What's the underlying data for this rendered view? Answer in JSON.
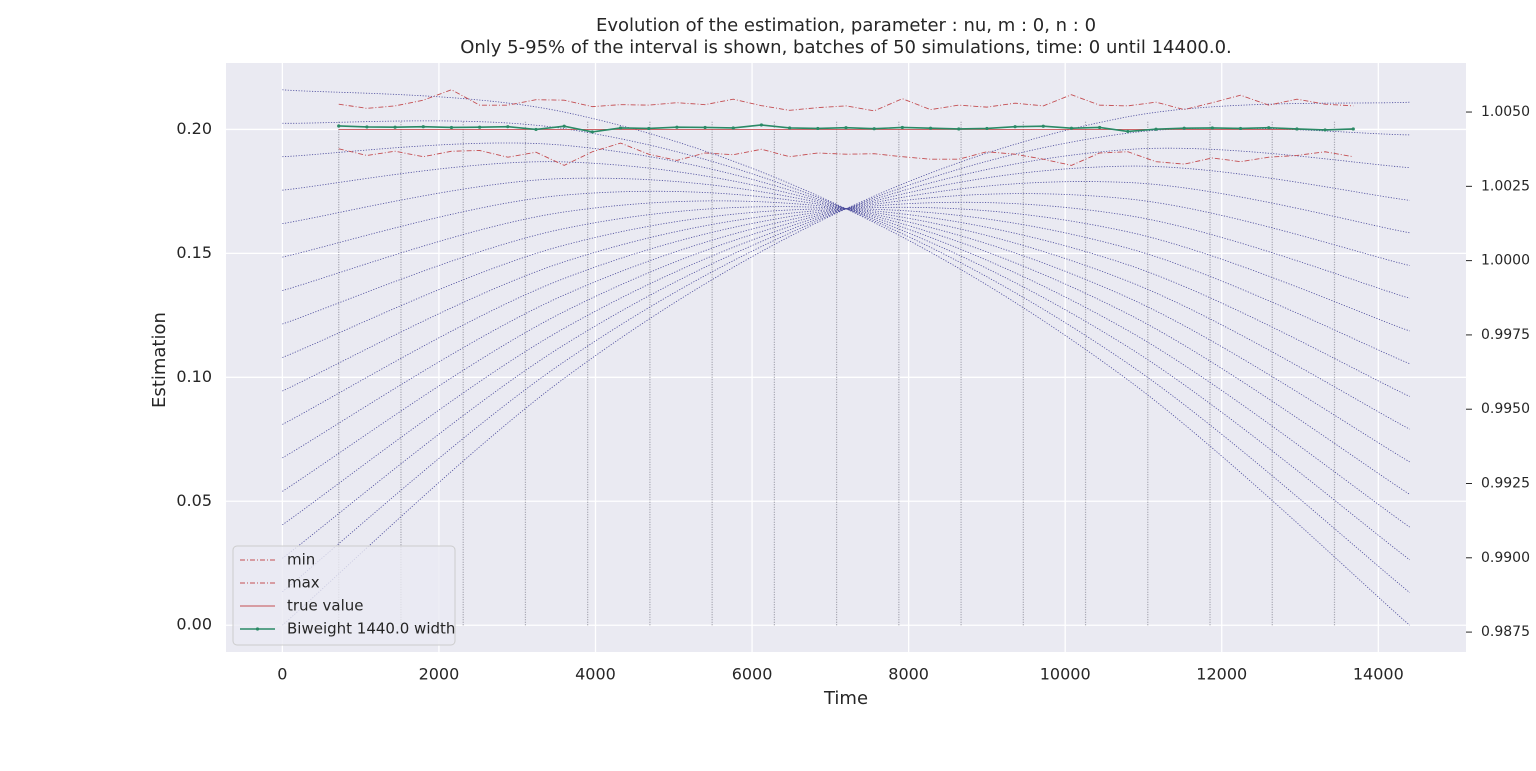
{
  "chart_data": {
    "type": "line",
    "title": "Evolution of the estimation, parameter : nu, m : 0, n : 0",
    "subtitle": "Only 5-95% of the interval is shown, batches of 50 simulations, time: 0 until 14400.0.",
    "x_label": "Time",
    "y_label": "Estimation",
    "xlim": [
      -720,
      15120
    ],
    "xticks": [
      0,
      2000,
      4000,
      6000,
      8000,
      10000,
      12000,
      14000
    ],
    "ylim": [
      -0.0108,
      0.2268
    ],
    "yticks": [
      {
        "value": 0,
        "label": "0.00"
      },
      {
        "value": 0.05,
        "label": "0.05"
      },
      {
        "value": 0.1,
        "label": "0.10"
      },
      {
        "value": 0.15,
        "label": "0.15"
      },
      {
        "value": 0.2,
        "label": "0.20"
      }
    ],
    "y2lim": [
      0.98683,
      1.00665
    ],
    "y2ticks": [
      {
        "value": 0.9875,
        "label": "0.9875"
      },
      {
        "value": 0.99,
        "label": "0.9900"
      },
      {
        "value": 0.9925,
        "label": "0.9925"
      },
      {
        "value": 0.995,
        "label": "0.9950"
      },
      {
        "value": 0.9975,
        "label": "0.9975"
      },
      {
        "value": 1.0,
        "label": "1.0000"
      },
      {
        "value": 1.0025,
        "label": "1.0025"
      },
      {
        "value": 1.005,
        "label": "1.0050"
      }
    ],
    "grid": true,
    "legend": "lower left",
    "x": [
      720,
      1080,
      1440,
      1800,
      2160,
      2520,
      2880,
      3240,
      3600,
      3960,
      4320,
      4680,
      5040,
      5400,
      5760,
      6120,
      6480,
      6840,
      7200,
      7560,
      7920,
      8280,
      8640,
      9000,
      9360,
      9720,
      10080,
      10440,
      10800,
      11160,
      11520,
      11880,
      12240,
      12600,
      12960,
      13320,
      13680
    ],
    "series": [
      {
        "name": "min",
        "color": "#c44e52",
        "dash": "dashdot",
        "values": [
          0.1922,
          0.1895,
          0.1912,
          0.189,
          0.1912,
          0.1915,
          0.1888,
          0.1908,
          0.1855,
          0.191,
          0.1945,
          0.19,
          0.1875,
          0.1905,
          0.1898,
          0.192,
          0.189,
          0.1905,
          0.19,
          0.1902,
          0.189,
          0.188,
          0.188,
          0.191,
          0.19,
          0.188,
          0.1855,
          0.1905,
          0.191,
          0.187,
          0.186,
          0.1885,
          0.187,
          0.1888,
          0.1895,
          0.191,
          0.189
        ]
      },
      {
        "name": "max",
        "color": "#c44e52",
        "dash": "dashdot",
        "values": [
          0.2102,
          0.2085,
          0.2095,
          0.2118,
          0.216,
          0.2098,
          0.2098,
          0.212,
          0.2118,
          0.2092,
          0.21,
          0.2098,
          0.2108,
          0.21,
          0.2122,
          0.2096,
          0.2077,
          0.2088,
          0.2095,
          0.2075,
          0.2124,
          0.208,
          0.2098,
          0.209,
          0.2106,
          0.2095,
          0.214,
          0.2098,
          0.2095,
          0.211,
          0.208,
          0.2108,
          0.2138,
          0.2098,
          0.2122,
          0.2102,
          0.2095
        ]
      },
      {
        "name": "true value",
        "color": "#c44e52",
        "dash": "solid",
        "x": [
          720,
          13680
        ],
        "values": [
          0.2,
          0.2
        ]
      },
      {
        "name": "Biweight 1440.0 width",
        "color": "#2a8a66",
        "dash": "solid",
        "marker": true,
        "values": [
          0.2014,
          0.201,
          0.2009,
          0.2011,
          0.2008,
          0.2009,
          0.2011,
          0.2,
          0.2013,
          0.199,
          0.2006,
          0.2004,
          0.2009,
          0.2008,
          0.2006,
          0.2018,
          0.2006,
          0.2004,
          0.2007,
          0.2003,
          0.2008,
          0.2005,
          0.2002,
          0.2004,
          0.2011,
          0.2013,
          0.2005,
          0.2008,
          0.1992,
          0.2001,
          0.2005,
          0.2006,
          0.2004,
          0.2007,
          0.2002,
          0.1998,
          0.2002
        ]
      }
    ],
    "curves": {
      "color": "#4b4b9c",
      "x": [
        0,
        3600,
        7200,
        10800,
        14400
      ],
      "values": [
        [
          0.216,
          0.207,
          0.168,
          0.099,
          0
        ],
        [
          0.2025,
          0.2003,
          0.168,
          0.1056,
          0.0132
        ],
        [
          0.189,
          0.1936,
          0.168,
          0.1123,
          0.0264
        ],
        [
          0.1755,
          0.1869,
          0.168,
          0.1189,
          0.0396
        ],
        [
          0.162,
          0.1802,
          0.168,
          0.1256,
          0.0528
        ],
        [
          0.1485,
          0.1735,
          0.168,
          0.1322,
          0.0659
        ],
        [
          0.135,
          0.1667,
          0.168,
          0.1388,
          0.0791
        ],
        [
          0.1215,
          0.16,
          0.168,
          0.1454,
          0.0923
        ],
        [
          0.108,
          0.1533,
          0.168,
          0.1521,
          0.1055
        ],
        [
          0.0945,
          0.1466,
          0.168,
          0.1587,
          0.1187
        ],
        [
          0.081,
          0.1399,
          0.168,
          0.1653,
          0.1319
        ],
        [
          0.0675,
          0.1332,
          0.168,
          0.172,
          0.1451
        ],
        [
          0.054,
          0.1265,
          0.168,
          0.1786,
          0.1583
        ],
        [
          0.0405,
          0.1198,
          0.168,
          0.1852,
          0.1714
        ],
        [
          0.027,
          0.1131,
          0.168,
          0.1919,
          0.1846
        ],
        [
          0.0135,
          0.1063,
          0.168,
          0.1985,
          0.1978
        ],
        [
          0,
          0.0996,
          0.168,
          0.2051,
          0.211
        ]
      ]
    },
    "vlines": {
      "color": "#9a9aa6",
      "x": [
        720,
        1515,
        2310,
        3105,
        3900,
        4695,
        5490,
        6285,
        7080,
        7875,
        8670,
        9465,
        10260,
        11055,
        11850,
        12645,
        13440
      ],
      "range": [
        0,
        0.2035
      ]
    }
  }
}
